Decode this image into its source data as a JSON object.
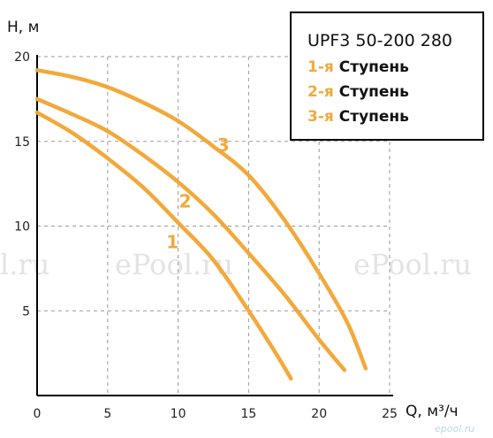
{
  "chart_data": {
    "type": "line",
    "ylabel": "H, м",
    "xlabel": "Q, м³/ч",
    "xlim": [
      0,
      25
    ],
    "ylim": [
      0,
      20
    ],
    "x_ticks": [
      "0",
      "5",
      "10",
      "15",
      "20",
      "25"
    ],
    "y_ticks": [
      "5",
      "10",
      "15",
      "20"
    ],
    "grid": true,
    "legend_title": "UPF3 50-200 280",
    "legend_position": "top-right",
    "series": [
      {
        "name": "1-я Ступень",
        "label": "1",
        "points": [
          [
            0,
            16.7
          ],
          [
            2.5,
            15.5
          ],
          [
            5,
            14.0
          ],
          [
            7.5,
            12.3
          ],
          [
            10,
            10.2
          ],
          [
            12.5,
            8.0
          ],
          [
            15,
            5.0
          ],
          [
            17,
            2.4
          ],
          [
            18,
            1.0
          ]
        ]
      },
      {
        "name": "2-я Ступень",
        "label": "2",
        "points": [
          [
            0,
            17.5
          ],
          [
            2.5,
            16.6
          ],
          [
            5,
            15.6
          ],
          [
            7.5,
            14.2
          ],
          [
            10,
            12.6
          ],
          [
            12.5,
            10.7
          ],
          [
            15,
            8.4
          ],
          [
            17.5,
            6.0
          ],
          [
            20,
            3.3
          ],
          [
            21.8,
            1.5
          ]
        ]
      },
      {
        "name": "3-я Ступень",
        "label": "3",
        "points": [
          [
            0,
            19.2
          ],
          [
            2.5,
            18.8
          ],
          [
            5,
            18.2
          ],
          [
            7.5,
            17.3
          ],
          [
            10,
            16.2
          ],
          [
            12.5,
            14.7
          ],
          [
            15,
            13.0
          ],
          [
            17.5,
            10.4
          ],
          [
            20,
            7.2
          ],
          [
            22,
            4.3
          ],
          [
            23.3,
            1.6
          ]
        ]
      }
    ],
    "curve_label_positions": [
      [
        9.6,
        8.7
      ],
      [
        10.5,
        11.1
      ],
      [
        13.2,
        14.4
      ]
    ],
    "colors": {
      "curve": "#f2a93b",
      "axis": "#000000",
      "grid": "#9a9a9a"
    }
  },
  "legend": {
    "title": "UPF3 50-200 280",
    "items": [
      {
        "num": "1-я",
        "text": "Ступень"
      },
      {
        "num": "2-я",
        "text": "Ступень"
      },
      {
        "num": "3-я",
        "text": "Ступень"
      }
    ]
  },
  "watermarks": [
    "l.ru",
    "ePool.ru",
    "ePool.ru"
  ],
  "footer_mark": "epool.ru"
}
